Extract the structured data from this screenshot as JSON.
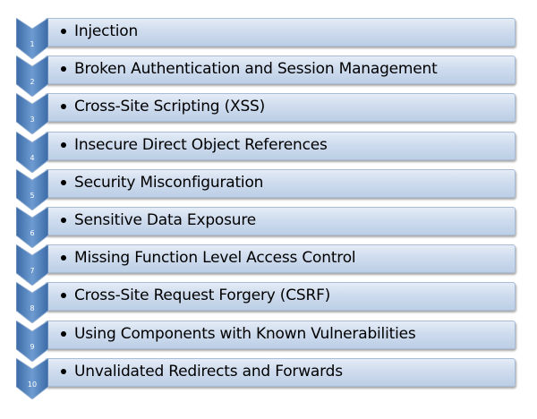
{
  "colors": {
    "bar": "#c8d7ec",
    "chevron": "#4f81bd"
  },
  "items": [
    {
      "number": "1",
      "label": "Injection"
    },
    {
      "number": "2",
      "label": "Broken Authentication and Session Management"
    },
    {
      "number": "3",
      "label": "Cross-Site Scripting (XSS)"
    },
    {
      "number": "4",
      "label": "Insecure Direct Object References"
    },
    {
      "number": "5",
      "label": "Security Misconfiguration"
    },
    {
      "number": "6",
      "label": "Sensitive Data Exposure"
    },
    {
      "number": "7",
      "label": "Missing Function Level Access Control"
    },
    {
      "number": "8",
      "label": "Cross-Site Request Forgery (CSRF)"
    },
    {
      "number": "9",
      "label": "Using Components with Known Vulnerabilities"
    },
    {
      "number": "10",
      "label": "Unvalidated Redirects and Forwards"
    }
  ]
}
